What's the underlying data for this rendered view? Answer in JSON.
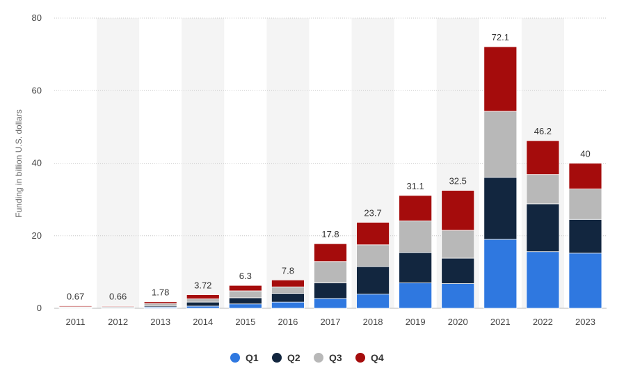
{
  "chart_data": {
    "type": "bar",
    "stacked": true,
    "title": "",
    "xlabel": "",
    "ylabel": "Funding in billion U.S. dollars",
    "ylim": [
      0,
      80
    ],
    "yticks": [
      0,
      20,
      40,
      60,
      80
    ],
    "grid": true,
    "legend_position": "bottom",
    "categories": [
      "2011",
      "2012",
      "2013",
      "2014",
      "2015",
      "2016",
      "2017",
      "2018",
      "2019",
      "2020",
      "2021",
      "2022",
      "2023"
    ],
    "series": [
      {
        "name": "Q1",
        "color": "#2f78e0",
        "values": [
          0.1,
          0.05,
          0.3,
          0.6,
          1.2,
          1.7,
          2.7,
          3.9,
          7.0,
          6.8,
          19.0,
          15.6,
          15.2
        ]
      },
      {
        "name": "Q2",
        "color": "#12263f",
        "values": [
          0.1,
          0.2,
          0.3,
          1.1,
          1.7,
          2.4,
          4.3,
          7.6,
          8.4,
          7.0,
          17.1,
          13.2,
          9.3
        ]
      },
      {
        "name": "Q3",
        "color": "#b8b8b8",
        "values": [
          0.22,
          0.21,
          0.73,
          0.9,
          1.9,
          1.8,
          5.9,
          6.0,
          8.7,
          7.7,
          18.2,
          8.1,
          8.4
        ]
      },
      {
        "name": "Q4",
        "color": "#a50c0c",
        "values": [
          0.25,
          0.2,
          0.45,
          1.12,
          1.5,
          1.9,
          4.9,
          6.2,
          7.0,
          11.0,
          17.8,
          9.3,
          7.1
        ]
      }
    ],
    "totals": [
      "0.67",
      "0.66",
      "1.78",
      "3.72",
      "6.3",
      "7.8",
      "17.8",
      "23.7",
      "31.1",
      "32.5",
      "72.1",
      "46.2",
      "40"
    ]
  }
}
